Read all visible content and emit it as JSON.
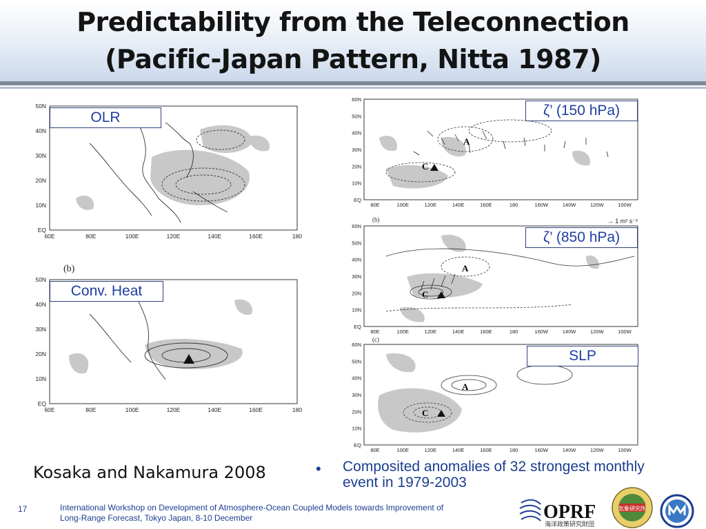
{
  "slide": {
    "title_line1": "Predictability from the Teleconnection",
    "title_line2": "(Pacific-Japan Pattern, Nitta 1987)",
    "citation": "Kosaka and Nakamura 2008",
    "bullet": "Composited anomalies of 32 strongest monthly event in 1979-2003",
    "page_number": "17",
    "footer_line1": "International Workshop on Development of Atmosphere-Ocean Coupled Models towards Improvement of",
    "footer_line2": "Long-Range Forecast, Tokyo Japan, 8-10 December"
  },
  "left_maps": {
    "lat_ticks": [
      "50N",
      "40N",
      "30N",
      "20N",
      "10N",
      "EQ"
    ],
    "lon_ticks": [
      "60E",
      "80E",
      "100E",
      "120E",
      "140E",
      "160E",
      "180"
    ],
    "olr_label": "OLR",
    "conv_label": "Conv. Heat",
    "panel_b": "(b)"
  },
  "right_maps": {
    "lat_ticks": [
      "60N",
      "50N",
      "40N",
      "30N",
      "20N",
      "10N",
      "EQ"
    ],
    "lon_ticks": [
      "80E",
      "100E",
      "120E",
      "140E",
      "160E",
      "180",
      "160W",
      "140W",
      "120W",
      "100W"
    ],
    "label_150": "ζ’ (150 hPa)",
    "label_850": "ζ’ (850 hPa)",
    "label_slp": "SLP",
    "panel_b": "(b)",
    "panel_c": "(c)",
    "vector_scale": "→ 1 m² s⁻²",
    "center_a": "A",
    "center_c": "C"
  },
  "logos": {
    "oprf_text": "OPRF",
    "oprf_sub": "海洋政策研究財団",
    "seal_text": "気象研究所"
  },
  "colors": {
    "text_blue": "#1a3d8f",
    "label_blue": "#1f3fa0",
    "shade": "#c8c8c8"
  }
}
